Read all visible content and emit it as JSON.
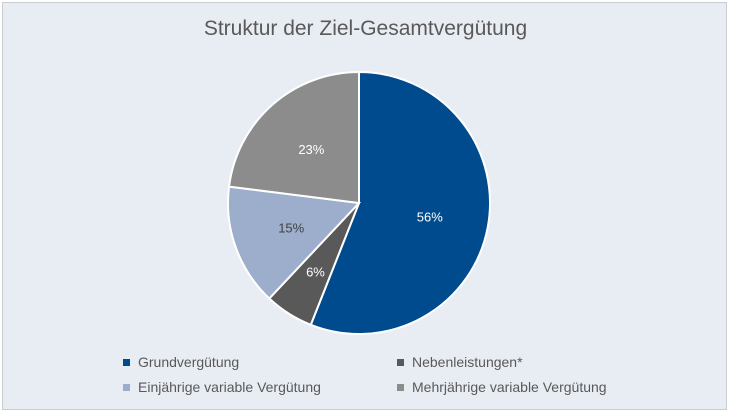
{
  "chart_data": {
    "type": "pie",
    "title": "Struktur der Ziel-Gesamtvergütung",
    "slices": [
      {
        "label": "Grundvergütung",
        "value": 56,
        "display": "56%",
        "color": "#004b8d"
      },
      {
        "label": "Nebenleistungen*",
        "value": 6,
        "display": "6%",
        "color": "#595959"
      },
      {
        "label": "Einjährige variable Vergütung",
        "value": 15,
        "display": "15%",
        "color": "#9caecb"
      },
      {
        "label": "Mehrjährige variable Vergütung",
        "value": 23,
        "display": "23%",
        "color": "#8c8c8c"
      }
    ],
    "legend_position": "bottom",
    "start_angle": "12 o'clock, clockwise"
  },
  "colors": {
    "background": "#e8edf4",
    "label_light": "#ffffff",
    "label_dark": "#404040"
  }
}
